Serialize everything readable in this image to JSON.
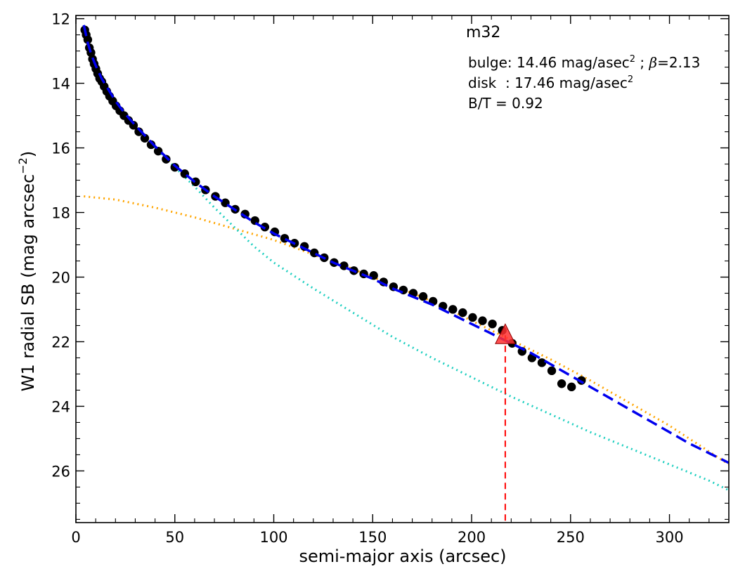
{
  "chart_data": {
    "type": "scatter",
    "title": "m32",
    "xlabel": "semi-major axis (arcsec)",
    "ylabel_main": "W1 radial SB (mag arcsec",
    "ylabel_sup": "−2",
    "ylabel_close": ")",
    "xlim": [
      0,
      330
    ],
    "ylim": [
      27.6,
      11.9
    ],
    "y_inverted": true,
    "x_ticks": [
      0,
      50,
      100,
      150,
      200,
      250,
      300
    ],
    "y_ticks": [
      12,
      14,
      16,
      18,
      20,
      22,
      24,
      26
    ],
    "grid": false,
    "annotations": {
      "bulge_prefix": "bulge: 14.46 mag/asec",
      "bulge_sup": "2",
      "bulge_suffix": " ; ",
      "beta_symbol": "β",
      "beta_value": "=2.13",
      "disk_prefix": "disk  : 17.46 mag/asec",
      "disk_sup": "2",
      "bt": "B/T = 0.92"
    },
    "colors": {
      "data_points": "#000000",
      "total_fit": "#0000ee",
      "bulge_component": "#1fcfc0",
      "disk_component": "#ffa500",
      "marker": "#ff3030",
      "marker_line": "#ff0000"
    },
    "observed": {
      "name": "",
      "x": [
        4.5,
        5.2,
        6.0,
        6.8,
        7.6,
        8.4,
        9.2,
        10.1,
        11.0,
        12.0,
        13.1,
        14.3,
        15.6,
        17.0,
        18.6,
        20.3,
        22.2,
        24.3,
        26.6,
        29.1,
        31.8,
        34.8,
        38.0,
        41.6,
        45.6,
        50.0,
        55.0,
        60.5,
        65.5,
        70.5,
        75.5,
        80.5,
        85.5,
        90.5,
        95.5,
        100.5,
        105.5,
        110.5,
        115.5,
        120.5,
        125.5,
        130.5,
        135.5,
        140.5,
        145.5,
        150.5,
        155.5,
        160.5,
        165.5,
        170.5,
        175.5,
        180.5,
        185.5,
        190.5,
        195.5,
        200.5,
        205.5,
        210.5,
        215.5,
        220.5,
        225.5,
        230.5,
        235.5,
        240.5,
        245.5,
        250.5,
        255.5
      ],
      "y": [
        12.35,
        12.5,
        12.65,
        12.9,
        13.05,
        13.25,
        13.4,
        13.55,
        13.7,
        13.85,
        13.95,
        14.1,
        14.25,
        14.4,
        14.55,
        14.7,
        14.85,
        15.0,
        15.15,
        15.3,
        15.5,
        15.7,
        15.9,
        16.1,
        16.35,
        16.6,
        16.8,
        17.05,
        17.3,
        17.5,
        17.7,
        17.9,
        18.05,
        18.25,
        18.45,
        18.6,
        18.8,
        18.95,
        19.05,
        19.25,
        19.4,
        19.55,
        19.65,
        19.8,
        19.9,
        19.95,
        20.15,
        20.3,
        20.4,
        20.5,
        20.6,
        20.75,
        20.9,
        21.0,
        21.1,
        21.25,
        21.35,
        21.45,
        21.65,
        22.05,
        22.3,
        22.5,
        22.65,
        22.9,
        23.3,
        23.4,
        23.2
      ]
    },
    "total_fit": {
      "name": "",
      "x": [
        4,
        6,
        8,
        10,
        13,
        16,
        20,
        25,
        30,
        40,
        50,
        60,
        70,
        80,
        90,
        100,
        110,
        120,
        130,
        140,
        150,
        160,
        170,
        180,
        190,
        200,
        210,
        220,
        230,
        240,
        250,
        260,
        270,
        280,
        290,
        300,
        310,
        320,
        330
      ],
      "y": [
        12.2,
        12.75,
        13.15,
        13.45,
        13.85,
        14.15,
        14.55,
        14.95,
        15.3,
        15.95,
        16.55,
        17.05,
        17.5,
        17.9,
        18.3,
        18.65,
        18.95,
        19.25,
        19.55,
        19.8,
        20.05,
        20.35,
        20.6,
        20.85,
        21.15,
        21.45,
        21.75,
        22.05,
        22.35,
        22.7,
        23.05,
        23.4,
        23.75,
        24.1,
        24.45,
        24.8,
        25.15,
        25.45,
        25.75
      ]
    },
    "bulge_component": {
      "name": "",
      "x": [
        4,
        6,
        8,
        10,
        13,
        16,
        20,
        25,
        30,
        40,
        50,
        60,
        70,
        80,
        90,
        100,
        120,
        140,
        160,
        180,
        200,
        220,
        240,
        260,
        280,
        300,
        320,
        330
      ],
      "y": [
        12.2,
        12.75,
        13.15,
        13.45,
        13.85,
        14.15,
        14.55,
        14.95,
        15.35,
        16.0,
        16.6,
        17.2,
        17.85,
        18.45,
        19.05,
        19.55,
        20.35,
        21.1,
        21.85,
        22.5,
        23.1,
        23.7,
        24.25,
        24.8,
        25.3,
        25.8,
        26.3,
        26.6
      ]
    },
    "disk_component": {
      "name": "",
      "x": [
        4,
        20,
        40,
        60,
        80,
        100,
        120,
        140,
        160,
        180,
        200,
        220,
        240,
        260,
        280,
        300,
        320,
        330
      ],
      "y": [
        17.5,
        17.6,
        17.85,
        18.15,
        18.5,
        18.85,
        19.3,
        19.75,
        20.25,
        20.75,
        21.35,
        21.95,
        22.55,
        23.2,
        23.9,
        24.6,
        25.4,
        25.8
      ]
    },
    "marker": {
      "x": 217,
      "y": 21.8,
      "line_to_y": 27.6
    }
  }
}
